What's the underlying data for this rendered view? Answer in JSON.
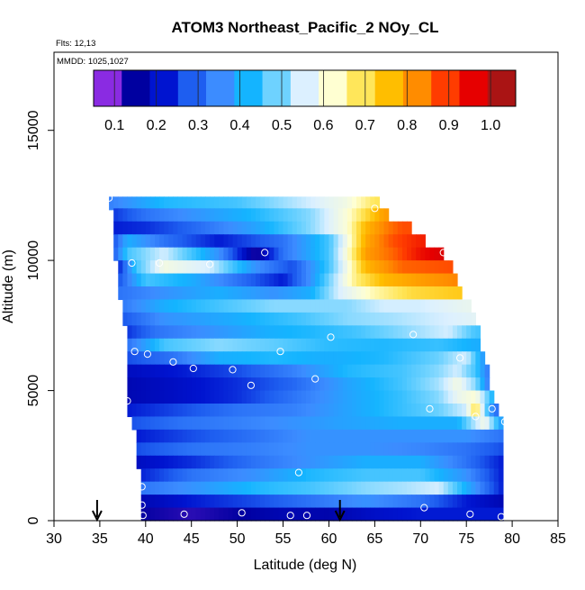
{
  "chart_data": {
    "type": "heatmap",
    "title": "ATOM3 Northeast_Pacific_2 NOy_CL",
    "annotations": [
      "Flts: 12,13",
      "MMDD: 1025,1027"
    ],
    "xlabel": "Latitude (deg N)",
    "ylabel": "Altitude (m)",
    "xlim": [
      30,
      85
    ],
    "ylim": [
      0,
      18000
    ],
    "x_ticks": [
      30,
      35,
      40,
      45,
      50,
      55,
      60,
      65,
      70,
      75,
      80,
      85
    ],
    "y_ticks": [
      0,
      5000,
      10000,
      15000
    ],
    "colorbar": {
      "ticks": [
        "0.1",
        "0.2",
        "0.3",
        "0.4",
        "0.5",
        "0.6",
        "0.7",
        "0.8",
        "0.9",
        "1.0"
      ],
      "range": [
        0.05,
        1.06
      ],
      "colors": [
        "#8a2be2",
        "#0000a0",
        "#0014d0",
        "#1e5ef0",
        "#3c8cff",
        "#14b4ff",
        "#6ed2ff",
        "#dcf0ff",
        "#ffffd2",
        "#ffe65a",
        "#ffbe00",
        "#ff8c00",
        "#ff3c00",
        "#e60000",
        "#aa1414"
      ]
    },
    "grid": false,
    "arrow_markers_latitude": [
      34.7,
      61.2
    ],
    "latitude_band": [
      36,
      80
    ],
    "altitude_bands": [
      {
        "alt": 12200,
        "latMin": 36.0,
        "latMax": 65.5,
        "points": [
          [
            36,
            0.32
          ],
          [
            42,
            0.42
          ],
          [
            50,
            0.45
          ],
          [
            58,
            0.55
          ],
          [
            62,
            0.6
          ],
          [
            65,
            0.7
          ]
        ]
      },
      {
        "alt": 11750,
        "latMin": 36.3,
        "latMax": 66.5,
        "points": [
          [
            36,
            0.22
          ],
          [
            40,
            0.3
          ],
          [
            45,
            0.35
          ],
          [
            52,
            0.42
          ],
          [
            58,
            0.5
          ],
          [
            62,
            0.62
          ],
          [
            64,
            0.72
          ],
          [
            66,
            0.82
          ]
        ]
      },
      {
        "alt": 11250,
        "latMin": 36.5,
        "latMax": 69.0,
        "points": [
          [
            36,
            0.2
          ],
          [
            40,
            0.22
          ],
          [
            45,
            0.28
          ],
          [
            52,
            0.38
          ],
          [
            58,
            0.5
          ],
          [
            62,
            0.62
          ],
          [
            64,
            0.78
          ],
          [
            66,
            0.85
          ],
          [
            68,
            0.9
          ]
        ]
      },
      {
        "alt": 10750,
        "latMin": 36.5,
        "latMax": 70.5,
        "points": [
          [
            36,
            0.2
          ],
          [
            38,
            0.4
          ],
          [
            42,
            0.3
          ],
          [
            48,
            0.2
          ],
          [
            55,
            0.3
          ],
          [
            60,
            0.45
          ],
          [
            62,
            0.6
          ],
          [
            64,
            0.8
          ],
          [
            67,
            0.9
          ],
          [
            70,
            0.95
          ]
        ]
      },
      {
        "alt": 10250,
        "latMin": 36.5,
        "latMax": 72.5,
        "points": [
          [
            36,
            0.2
          ],
          [
            38,
            0.45
          ],
          [
            42,
            0.55
          ],
          [
            48,
            0.35
          ],
          [
            52,
            0.1
          ],
          [
            55,
            0.3
          ],
          [
            60,
            0.45
          ],
          [
            62,
            0.62
          ],
          [
            64,
            0.82
          ],
          [
            67,
            0.88
          ],
          [
            70,
            0.97
          ],
          [
            72,
            1.0
          ]
        ]
      },
      {
        "alt": 9750,
        "latMin": 36.8,
        "latMax": 73.5,
        "points": [
          [
            37,
            0.2
          ],
          [
            39,
            0.45
          ],
          [
            42,
            0.6
          ],
          [
            47,
            0.55
          ],
          [
            52,
            0.35
          ],
          [
            56,
            0.25
          ],
          [
            60,
            0.45
          ],
          [
            62,
            0.6
          ],
          [
            64,
            0.78
          ],
          [
            68,
            0.88
          ],
          [
            73,
            0.9
          ]
        ]
      },
      {
        "alt": 9250,
        "latMin": 37.0,
        "latMax": 74.0,
        "points": [
          [
            37,
            0.25
          ],
          [
            40,
            0.45
          ],
          [
            45,
            0.4
          ],
          [
            50,
            0.3
          ],
          [
            55,
            0.2
          ],
          [
            58,
            0.35
          ],
          [
            61,
            0.55
          ],
          [
            63,
            0.68
          ],
          [
            66,
            0.78
          ],
          [
            70,
            0.82
          ],
          [
            74,
            0.85
          ]
        ]
      },
      {
        "alt": 8750,
        "latMin": 37.2,
        "latMax": 74.5,
        "points": [
          [
            37,
            0.3
          ],
          [
            42,
            0.35
          ],
          [
            48,
            0.4
          ],
          [
            54,
            0.35
          ],
          [
            58,
            0.4
          ],
          [
            61,
            0.55
          ],
          [
            63,
            0.6
          ],
          [
            65,
            0.65
          ],
          [
            69,
            0.72
          ],
          [
            74,
            0.75
          ]
        ]
      },
      {
        "alt": 8250,
        "latMin": 37.4,
        "latMax": 75.5,
        "points": [
          [
            37,
            0.3
          ],
          [
            42,
            0.4
          ],
          [
            48,
            0.45
          ],
          [
            54,
            0.5
          ],
          [
            58,
            0.5
          ],
          [
            62,
            0.5
          ],
          [
            66,
            0.55
          ],
          [
            70,
            0.55
          ],
          [
            75,
            0.58
          ]
        ]
      },
      {
        "alt": 7750,
        "latMin": 37.6,
        "latMax": 76.0,
        "points": [
          [
            37,
            0.25
          ],
          [
            42,
            0.35
          ],
          [
            50,
            0.4
          ],
          [
            57,
            0.45
          ],
          [
            62,
            0.5
          ],
          [
            67,
            0.52
          ],
          [
            72,
            0.55
          ],
          [
            76,
            0.57
          ]
        ]
      },
      {
        "alt": 7250,
        "latMin": 37.8,
        "latMax": 76.5,
        "points": [
          [
            37,
            0.2
          ],
          [
            41,
            0.3
          ],
          [
            47,
            0.35
          ],
          [
            53,
            0.4
          ],
          [
            58,
            0.42
          ],
          [
            63,
            0.45
          ],
          [
            68,
            0.5
          ],
          [
            73,
            0.55
          ],
          [
            76,
            0.45
          ]
        ]
      },
      {
        "alt": 6750,
        "latMin": 38.0,
        "latMax": 76.5,
        "points": [
          [
            38,
            0.3
          ],
          [
            42,
            0.45
          ],
          [
            48,
            0.5
          ],
          [
            54,
            0.47
          ],
          [
            60,
            0.43
          ],
          [
            66,
            0.42
          ],
          [
            72,
            0.44
          ],
          [
            76,
            0.4
          ]
        ]
      },
      {
        "alt": 6250,
        "latMin": 38.0,
        "latMax": 77.0,
        "points": [
          [
            38,
            0.25
          ],
          [
            43,
            0.3
          ],
          [
            48,
            0.4
          ],
          [
            54,
            0.42
          ],
          [
            60,
            0.4
          ],
          [
            66,
            0.42
          ],
          [
            72,
            0.48
          ],
          [
            75,
            0.55
          ],
          [
            77,
            0.35
          ]
        ]
      },
      {
        "alt": 5750,
        "latMin": 38.0,
        "latMax": 77.5,
        "points": [
          [
            38,
            0.17
          ],
          [
            44,
            0.2
          ],
          [
            50,
            0.25
          ],
          [
            56,
            0.32
          ],
          [
            62,
            0.42
          ],
          [
            68,
            0.45
          ],
          [
            72,
            0.5
          ],
          [
            74,
            0.55
          ],
          [
            76,
            0.45
          ],
          [
            77.5,
            0.3
          ]
        ]
      },
      {
        "alt": 5250,
        "latMin": 38.0,
        "latMax": 77.5,
        "points": [
          [
            38,
            0.15
          ],
          [
            44,
            0.18
          ],
          [
            50,
            0.22
          ],
          [
            56,
            0.28
          ],
          [
            62,
            0.38
          ],
          [
            68,
            0.45
          ],
          [
            72,
            0.52
          ],
          [
            74,
            0.6
          ],
          [
            76,
            0.5
          ],
          [
            77.5,
            0.3
          ]
        ]
      },
      {
        "alt": 4750,
        "latMin": 38.0,
        "latMax": 78.0,
        "points": [
          [
            38,
            0.15
          ],
          [
            44,
            0.18
          ],
          [
            50,
            0.22
          ],
          [
            56,
            0.3
          ],
          [
            62,
            0.38
          ],
          [
            68,
            0.44
          ],
          [
            72,
            0.5
          ],
          [
            74,
            0.58
          ],
          [
            76,
            0.62
          ],
          [
            78,
            0.4
          ]
        ]
      },
      {
        "alt": 4250,
        "latMin": 38.2,
        "latMax": 78.3,
        "points": [
          [
            38,
            0.2
          ],
          [
            44,
            0.25
          ],
          [
            50,
            0.3
          ],
          [
            56,
            0.32
          ],
          [
            62,
            0.38
          ],
          [
            68,
            0.44
          ],
          [
            72,
            0.48
          ],
          [
            75,
            0.55
          ],
          [
            76,
            0.72
          ],
          [
            78,
            0.3
          ]
        ]
      },
      {
        "alt": 3750,
        "latMin": 38.5,
        "latMax": 79.0,
        "points": [
          [
            38,
            0.25
          ],
          [
            44,
            0.3
          ],
          [
            50,
            0.32
          ],
          [
            56,
            0.35
          ],
          [
            62,
            0.38
          ],
          [
            68,
            0.4
          ],
          [
            74,
            0.4
          ],
          [
            77,
            0.6
          ],
          [
            79,
            0.35
          ]
        ]
      },
      {
        "alt": 3250,
        "latMin": 39.0,
        "latMax": 79.0,
        "points": [
          [
            39,
            0.2
          ],
          [
            45,
            0.25
          ],
          [
            52,
            0.3
          ],
          [
            58,
            0.35
          ],
          [
            64,
            0.35
          ],
          [
            70,
            0.35
          ],
          [
            75,
            0.35
          ],
          [
            79,
            0.3
          ]
        ]
      },
      {
        "alt": 2750,
        "latMin": 39.0,
        "latMax": 79.0,
        "points": [
          [
            39,
            0.25
          ],
          [
            45,
            0.3
          ],
          [
            52,
            0.32
          ],
          [
            58,
            0.35
          ],
          [
            64,
            0.35
          ],
          [
            70,
            0.33
          ],
          [
            75,
            0.3
          ],
          [
            79,
            0.25
          ]
        ]
      },
      {
        "alt": 2250,
        "latMin": 39.2,
        "latMax": 79.0,
        "points": [
          [
            39,
            0.17
          ],
          [
            45,
            0.22
          ],
          [
            52,
            0.3
          ],
          [
            58,
            0.35
          ],
          [
            64,
            0.4
          ],
          [
            70,
            0.4
          ],
          [
            75,
            0.3
          ],
          [
            79,
            0.2
          ]
        ]
      },
      {
        "alt": 1750,
        "latMin": 39.4,
        "latMax": 79.0,
        "points": [
          [
            39,
            0.2
          ],
          [
            45,
            0.3
          ],
          [
            52,
            0.35
          ],
          [
            58,
            0.42
          ],
          [
            64,
            0.45
          ],
          [
            70,
            0.45
          ],
          [
            75,
            0.35
          ],
          [
            79,
            0.2
          ]
        ]
      },
      {
        "alt": 1250,
        "latMin": 39.4,
        "latMax": 79.0,
        "points": [
          [
            39,
            0.3
          ],
          [
            45,
            0.35
          ],
          [
            52,
            0.42
          ],
          [
            58,
            0.45
          ],
          [
            64,
            0.5
          ],
          [
            68,
            0.52
          ],
          [
            72,
            0.55
          ],
          [
            75,
            0.4
          ],
          [
            79,
            0.2
          ]
        ]
      },
      {
        "alt": 750,
        "latMin": 39.5,
        "latMax": 79.0,
        "points": [
          [
            39.5,
            0.15
          ],
          [
            45,
            0.2
          ],
          [
            52,
            0.25
          ],
          [
            58,
            0.3
          ],
          [
            64,
            0.35
          ],
          [
            70,
            0.3
          ],
          [
            75,
            0.2
          ],
          [
            79,
            0.15
          ]
        ]
      },
      {
        "alt": 250,
        "latMin": 39.5,
        "latMax": 79.0,
        "points": [
          [
            39.5,
            0.12
          ],
          [
            45,
            0.1
          ],
          [
            50,
            0.12
          ],
          [
            55,
            0.15
          ],
          [
            60,
            0.14
          ],
          [
            65,
            0.18
          ],
          [
            70,
            0.2
          ],
          [
            75,
            0.2
          ],
          [
            79,
            0.2
          ]
        ]
      }
    ],
    "observations": [
      {
        "lat": 36.0,
        "alt": 12400
      },
      {
        "lat": 65.0,
        "alt": 12000
      },
      {
        "lat": 38.5,
        "alt": 9900
      },
      {
        "lat": 41.5,
        "alt": 9900
      },
      {
        "lat": 47.0,
        "alt": 9850
      },
      {
        "lat": 53.0,
        "alt": 10300
      },
      {
        "lat": 72.5,
        "alt": 10300
      },
      {
        "lat": 37.3,
        "alt": 7200
      },
      {
        "lat": 38.8,
        "alt": 6500
      },
      {
        "lat": 40.2,
        "alt": 6400
      },
      {
        "lat": 43.0,
        "alt": 6100
      },
      {
        "lat": 45.2,
        "alt": 5850
      },
      {
        "lat": 49.5,
        "alt": 5800
      },
      {
        "lat": 51.5,
        "alt": 5200
      },
      {
        "lat": 54.7,
        "alt": 6500
      },
      {
        "lat": 58.5,
        "alt": 5450
      },
      {
        "lat": 60.2,
        "alt": 7050
      },
      {
        "lat": 69.2,
        "alt": 7150
      },
      {
        "lat": 74.3,
        "alt": 6250
      },
      {
        "lat": 77.0,
        "alt": 7400
      },
      {
        "lat": 38.0,
        "alt": 4600
      },
      {
        "lat": 71.0,
        "alt": 4300
      },
      {
        "lat": 76.0,
        "alt": 4000
      },
      {
        "lat": 77.8,
        "alt": 4300
      },
      {
        "lat": 79.2,
        "alt": 3800
      },
      {
        "lat": 56.7,
        "alt": 1850
      },
      {
        "lat": 39.6,
        "alt": 1300
      },
      {
        "lat": 39.6,
        "alt": 600
      },
      {
        "lat": 39.7,
        "alt": 200
      },
      {
        "lat": 44.2,
        "alt": 250
      },
      {
        "lat": 50.5,
        "alt": 300
      },
      {
        "lat": 55.8,
        "alt": 200
      },
      {
        "lat": 57.6,
        "alt": 200
      },
      {
        "lat": 70.4,
        "alt": 500
      },
      {
        "lat": 75.4,
        "alt": 250
      },
      {
        "lat": 78.8,
        "alt": 150
      }
    ]
  }
}
